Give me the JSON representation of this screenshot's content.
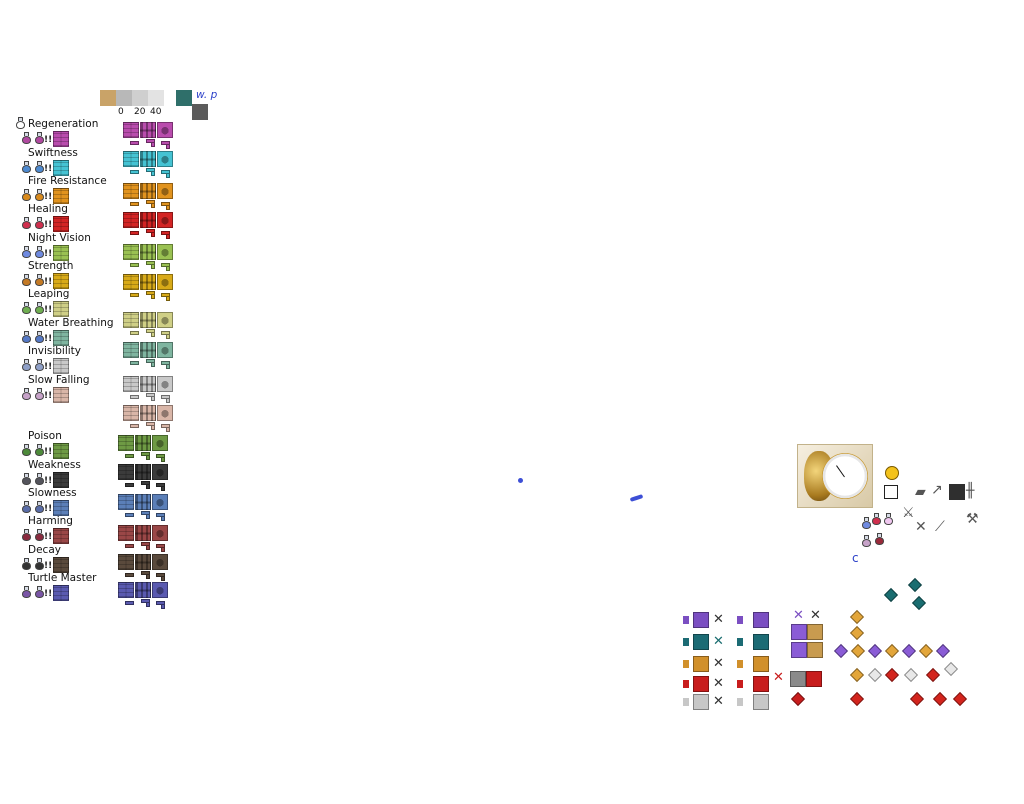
{
  "legend": {
    "swatches": [
      "#c9a368",
      "#b8b8b8",
      "#cfcfcf",
      "#e3e3e3"
    ],
    "ticks": [
      "0",
      "20",
      "40"
    ],
    "teal_swatch": "#2f6f6a",
    "gray_swatch": "#5b5b5b",
    "note": "w. p"
  },
  "effects": [
    {
      "label": "Regeneration",
      "potion": "#b04aa0",
      "color": "#b94cad"
    },
    {
      "label": "Swiftness",
      "potion": "#4e8ad0",
      "color": "#45c3d3"
    },
    {
      "label": "Fire Resistance",
      "potion": "#d98a1c",
      "color": "#e1931e"
    },
    {
      "label": "Healing",
      "potion": "#cf2f4d",
      "color": "#d32424"
    },
    {
      "label": "Night Vision",
      "potion": "#6f8ae0",
      "color": "#9ac152"
    },
    {
      "label": "Strength",
      "potion": "#c47a25",
      "color": "#d8aa18"
    },
    {
      "label": "Leaping",
      "potion": "#6fae51",
      "color": "#cfcf86"
    },
    {
      "label": "Water Breathing",
      "potion": "#5579c6",
      "color": "#7fb5a0"
    },
    {
      "label": "Invisibility",
      "potion": "#8fa0c8",
      "color": "#c9c9c9"
    },
    {
      "label": "Slow Falling",
      "potion": "#c6a2c8",
      "color": "#d9b6a8"
    },
    {
      "label": "Poison",
      "potion": "#4d8a3a",
      "color": "#6e9a44"
    },
    {
      "label": "Weakness",
      "potion": "#54545c",
      "color": "#3b3b3b"
    },
    {
      "label": "Slowness",
      "potion": "#5a6da8",
      "color": "#5b7fb8"
    },
    {
      "label": "Harming",
      "potion": "#8a2a3f",
      "color": "#9a4747"
    },
    {
      "label": "Decay",
      "potion": "#333333",
      "color": "#5a4a3c"
    },
    {
      "label": "Turtle Master",
      "potion": "#7a55a6",
      "color": "#5a5ab0"
    }
  ],
  "extra_block_colors": [
    "#c7c7c7",
    "#c8a99a"
  ],
  "watch_panel": {
    "emoji": "smiling-face",
    "palette": [
      "#b29a7c",
      "#2f2f2f",
      "#4b4b4b"
    ]
  },
  "gem_panel": {
    "rows": [
      "#7b4fc2",
      "#1c6b74",
      "#d1902b",
      "#c81d1d",
      "#c7c7c7"
    ],
    "crystals": [
      "#8a5cd6",
      "#e3a63a",
      "#d3241d",
      "#e8e8e8",
      "#1a6d70"
    ]
  }
}
